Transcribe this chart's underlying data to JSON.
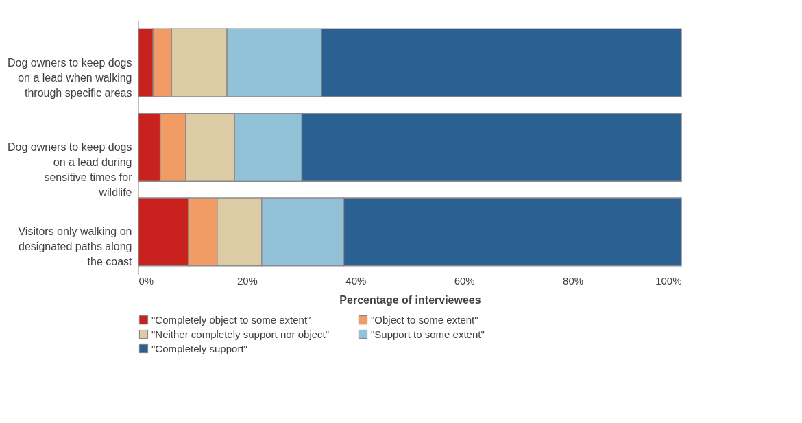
{
  "chart_data": {
    "type": "bar",
    "orientation": "horizontal",
    "stacked": true,
    "xlabel": "Percentage of interviewees",
    "categories": [
      "Dog owners to keep dogs on a lead when walking through specific areas",
      "Dog owners to keep dogs on a lead during sensitive times for wildlife",
      "Visitors only walking on designated paths along the coast"
    ],
    "series": [
      {
        "name": "\"Completely object to some extent\"",
        "color": "#c9211e",
        "values": [
          2.7,
          4.0,
          9.2
        ]
      },
      {
        "name": "\"Object to some extent\"",
        "color": "#f09c64",
        "values": [
          3.4,
          4.7,
          5.3
        ]
      },
      {
        "name": "\"Neither completely support nor object\"",
        "color": "#dccba5",
        "values": [
          10.2,
          9.0,
          8.2
        ]
      },
      {
        "name": "\"Support to some extent\"",
        "color": "#92c2d8",
        "values": [
          17.4,
          12.4,
          15.1
        ]
      },
      {
        "name": "\"Completely support\"",
        "color": "#2b6192",
        "values": [
          66.3,
          69.9,
          62.2
        ]
      }
    ],
    "xlim": [
      0,
      100
    ],
    "xticks": [
      {
        "value": 0,
        "label": "0%"
      },
      {
        "value": 20,
        "label": "20%"
      },
      {
        "value": 40,
        "label": "40%"
      },
      {
        "value": 60,
        "label": "60%"
      },
      {
        "value": 80,
        "label": "80%"
      },
      {
        "value": 100,
        "label": "100%"
      }
    ],
    "grid": false,
    "legend": "bottom"
  }
}
